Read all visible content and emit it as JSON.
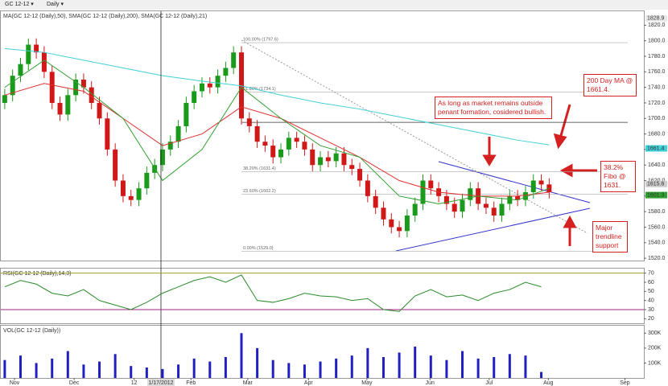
{
  "toolbar": {
    "symbol": "GC 12-12 ▾",
    "interval": "Daily ▾"
  },
  "annotations": [
    "As long as market remains outside penant formation, cosidered bullish.",
    "200 Day MA @ 1661.4.",
    "38.2% Fibo @ 1631.",
    "Major trendline support"
  ],
  "chart_data": [
    {
      "type": "candlestick",
      "title": "MA(GC 12-12 (Daily),50), SMA(GC 12-12 (Daily),200), SMA(GC 12-12 (Daily),21)",
      "xlim": [
        -0.6,
        81
      ],
      "ylim": [
        1517,
        1838
      ],
      "yticks": [
        {
          "value": 1520,
          "label": "1520.0"
        },
        {
          "value": 1540,
          "label": "1540.0"
        },
        {
          "value": 1560,
          "label": "1560.0"
        },
        {
          "value": 1580,
          "label": "1580.0"
        },
        {
          "value": 1600,
          "label": "1600.0"
        },
        {
          "value": 1620,
          "label": "1620.0"
        },
        {
          "value": 1640,
          "label": "1640.0"
        },
        {
          "value": 1660,
          "label": "1660.0"
        },
        {
          "value": 1680,
          "label": "1680.0"
        },
        {
          "value": 1700,
          "label": "1700.0"
        },
        {
          "value": 1720,
          "label": "1720.0"
        },
        {
          "value": 1740,
          "label": "1740.0"
        },
        {
          "value": 1760,
          "label": "1760.0"
        },
        {
          "value": 1780,
          "label": "1780.0"
        },
        {
          "value": 1800,
          "label": "1800.0"
        },
        {
          "value": 1820,
          "label": "1820.0"
        }
      ],
      "open": [
        1720,
        1730,
        1755,
        1770,
        1795,
        1785,
        1760,
        1720,
        1705,
        1730,
        1750,
        1740,
        1720,
        1700,
        1660,
        1620,
        1600,
        1595,
        1610,
        1630,
        1640,
        1660,
        1670,
        1690,
        1720,
        1735,
        1745,
        1740,
        1755,
        1765,
        1785,
        1700,
        1690,
        1670,
        1665,
        1650,
        1660,
        1675,
        1670,
        1660,
        1640,
        1650,
        1645,
        1655,
        1640,
        1635,
        1620,
        1600,
        1585,
        1570,
        1560,
        1555,
        1575,
        1590,
        1620,
        1610,
        1600,
        1590,
        1580,
        1595,
        1610,
        1590,
        1585,
        1575,
        1590,
        1600,
        1595,
        1605,
        1620,
        1615
      ],
      "high": [
        1738,
        1763,
        1778,
        1803,
        1803,
        1793,
        1768,
        1728,
        1738,
        1758,
        1758,
        1748,
        1728,
        1708,
        1668,
        1628,
        1608,
        1618,
        1638,
        1648,
        1668,
        1678,
        1698,
        1728,
        1743,
        1753,
        1753,
        1763,
        1773,
        1793,
        1793,
        1708,
        1698,
        1678,
        1673,
        1668,
        1683,
        1683,
        1678,
        1668,
        1658,
        1658,
        1663,
        1663,
        1648,
        1643,
        1628,
        1608,
        1593,
        1578,
        1568,
        1583,
        1598,
        1628,
        1628,
        1618,
        1608,
        1598,
        1603,
        1618,
        1618,
        1598,
        1593,
        1598,
        1608,
        1608,
        1613,
        1628,
        1628,
        1623
      ],
      "low": [
        1712,
        1722,
        1747,
        1762,
        1777,
        1752,
        1712,
        1697,
        1697,
        1722,
        1732,
        1712,
        1692,
        1652,
        1612,
        1592,
        1587,
        1587,
        1602,
        1622,
        1632,
        1652,
        1662,
        1682,
        1712,
        1727,
        1732,
        1732,
        1747,
        1757,
        1692,
        1682,
        1662,
        1657,
        1642,
        1642,
        1652,
        1662,
        1652,
        1632,
        1632,
        1637,
        1637,
        1632,
        1627,
        1612,
        1592,
        1577,
        1562,
        1552,
        1547,
        1547,
        1567,
        1582,
        1602,
        1592,
        1582,
        1572,
        1572,
        1587,
        1582,
        1577,
        1567,
        1567,
        1582,
        1587,
        1587,
        1597,
        1607,
        1597
      ],
      "close": [
        1730,
        1755,
        1770,
        1795,
        1785,
        1760,
        1720,
        1705,
        1730,
        1750,
        1740,
        1720,
        1700,
        1660,
        1620,
        1600,
        1595,
        1610,
        1630,
        1640,
        1660,
        1670,
        1690,
        1720,
        1735,
        1745,
        1740,
        1755,
        1765,
        1785,
        1700,
        1690,
        1670,
        1665,
        1650,
        1660,
        1675,
        1670,
        1660,
        1640,
        1650,
        1645,
        1655,
        1640,
        1635,
        1620,
        1600,
        1585,
        1570,
        1560,
        1555,
        1575,
        1590,
        1620,
        1610,
        1600,
        1590,
        1580,
        1595,
        1610,
        1590,
        1585,
        1575,
        1590,
        1600,
        1595,
        1605,
        1620,
        1615,
        1605
      ],
      "up_color": "#1a9a1a",
      "down_color": "#d01818",
      "series": [
        {
          "name": "SMA 200",
          "color": "#3fd0d8",
          "x": [
            0,
            5,
            10,
            15,
            20,
            25,
            30,
            35,
            40,
            45,
            50,
            55,
            60,
            65,
            69
          ],
          "values": [
            1790,
            1785,
            1775,
            1765,
            1755,
            1748,
            1742,
            1730,
            1720,
            1712,
            1702,
            1692,
            1682,
            1672,
            1666
          ]
        },
        {
          "name": "MA 50",
          "color": "#e03030",
          "x": [
            0,
            5,
            10,
            15,
            20,
            25,
            30,
            35,
            40,
            45,
            50,
            55,
            60,
            65,
            69
          ],
          "values": [
            1730,
            1745,
            1735,
            1700,
            1665,
            1680,
            1715,
            1700,
            1675,
            1650,
            1620,
            1605,
            1600,
            1600,
            1605
          ]
        },
        {
          "name": "SMA 21",
          "color": "#30a030",
          "x": [
            0,
            5,
            10,
            15,
            20,
            25,
            30,
            35,
            40,
            45,
            50,
            55,
            60,
            65,
            69
          ],
          "values": [
            1740,
            1775,
            1740,
            1700,
            1620,
            1660,
            1740,
            1700,
            1665,
            1650,
            1600,
            1590,
            1600,
            1595,
            1610
          ]
        }
      ],
      "fib": [
        {
          "value": 1797.6,
          "label": "100.00% (1797.6)"
        },
        {
          "value": 1734.1,
          "label": "61.80% (1734.1)"
        },
        {
          "value": 1631.4,
          "label": "38.20% (1631.4)"
        },
        {
          "value": 1602.2,
          "label": "23.60% (1602.2)"
        },
        {
          "value": 1529.0,
          "label": "0.00% (1529.0)"
        }
      ],
      "fib_start": 30,
      "hline": 1695,
      "price_labels": [
        {
          "value": 1828.9,
          "label": "1828.9",
          "color": "#e8e8e8"
        },
        {
          "value": 1661.4,
          "label": "1661.4",
          "color": "#3fd0d8"
        },
        {
          "value": 1615.6,
          "label": "1615.6",
          "color": "#cccccc"
        },
        {
          "value": 1601.3,
          "label": "1601.3",
          "color": "#30a030"
        }
      ],
      "cursor": {
        "x": 19.8,
        "label": "1/17/2012"
      }
    },
    {
      "type": "line",
      "title": "RSI(GC 12-12 (Daily),14,3)",
      "xlim": [
        -0.6,
        81
      ],
      "ylim": [
        15,
        75
      ],
      "yticks": [
        20,
        30,
        40,
        50,
        60,
        70
      ],
      "levels": [
        {
          "value": 70,
          "color": "#a0a020"
        },
        {
          "value": 30,
          "color": "#a02080"
        }
      ],
      "series": [
        {
          "name": "RSI",
          "color": "#2a8a2a",
          "x": [
            0,
            2,
            4,
            6,
            8,
            10,
            12,
            14,
            16,
            18,
            20,
            22,
            24,
            26,
            28,
            30,
            32,
            34,
            36,
            38,
            40,
            42,
            44,
            46,
            48,
            50,
            52,
            54,
            56,
            58,
            60,
            62,
            64,
            66,
            68
          ],
          "values": [
            55,
            62,
            58,
            48,
            45,
            52,
            40,
            35,
            30,
            38,
            48,
            55,
            62,
            66,
            60,
            68,
            40,
            38,
            42,
            48,
            45,
            44,
            40,
            42,
            30,
            28,
            45,
            52,
            44,
            46,
            40,
            48,
            52,
            60,
            55
          ]
        }
      ]
    },
    {
      "type": "bar",
      "title": "VOL(GC 12-12 (Daily))",
      "xlim": [
        -0.6,
        81
      ],
      "ylim": [
        0,
        350000
      ],
      "yticks": [
        {
          "value": 100000,
          "label": "100K"
        },
        {
          "value": 200000,
          "label": "200K"
        },
        {
          "value": 300000,
          "label": "300K"
        }
      ],
      "xticks": [
        {
          "value": 1.24,
          "label": "Nov"
        },
        {
          "value": 8.8,
          "label": "Dec"
        },
        {
          "value": 16.4,
          "label": "12"
        },
        {
          "value": 23.6,
          "label": "Feb"
        },
        {
          "value": 30.8,
          "label": "Mar"
        },
        {
          "value": 38.5,
          "label": "Apr"
        },
        {
          "value": 45.9,
          "label": "May"
        },
        {
          "value": 53.9,
          "label": "Jun"
        },
        {
          "value": 61.4,
          "label": "Jul"
        },
        {
          "value": 68.9,
          "label": "Aug"
        },
        {
          "value": 78.6,
          "label": "Sep"
        }
      ],
      "series": [
        {
          "name": "Volume",
          "color": "#2020c0",
          "x": [
            0,
            2,
            4,
            6,
            8,
            10,
            12,
            14,
            16,
            18,
            20,
            22,
            24,
            26,
            28,
            30,
            32,
            34,
            36,
            38,
            40,
            42,
            44,
            46,
            48,
            50,
            52,
            54,
            56,
            58,
            60,
            62,
            64,
            66,
            68
          ],
          "values": [
            120000,
            150000,
            100000,
            130000,
            180000,
            90000,
            110000,
            160000,
            80000,
            70000,
            60000,
            90000,
            130000,
            110000,
            140000,
            300000,
            200000,
            120000,
            100000,
            90000,
            110000,
            130000,
            150000,
            200000,
            140000,
            170000,
            210000,
            150000,
            120000,
            180000,
            130000,
            140000,
            160000,
            150000,
            40000
          ]
        }
      ]
    }
  ]
}
